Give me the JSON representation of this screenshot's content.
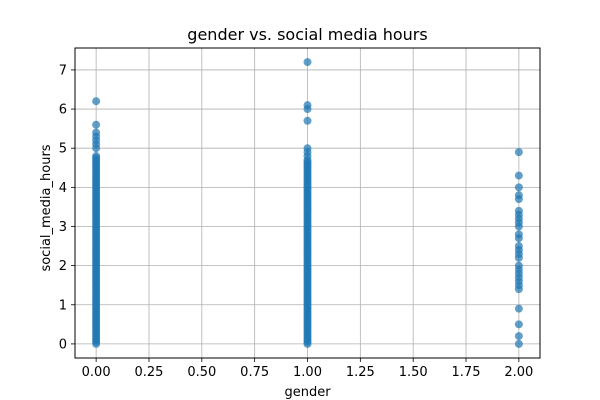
{
  "chart_data": {
    "type": "scatter",
    "title": "gender vs. social media hours",
    "xlabel": "gender",
    "ylabel": "social_media_hours",
    "xlim": [
      -0.1,
      2.1
    ],
    "ylim": [
      -0.36,
      7.56
    ],
    "xticks": [
      0.0,
      0.25,
      0.5,
      0.75,
      1.0,
      1.25,
      1.5,
      1.75,
      2.0
    ],
    "xtick_labels": [
      "0.00",
      "0.25",
      "0.50",
      "0.75",
      "1.00",
      "1.25",
      "1.50",
      "1.75",
      "2.00"
    ],
    "yticks": [
      0,
      1,
      2,
      3,
      4,
      5,
      6,
      7
    ],
    "ytick_labels": [
      "0",
      "1",
      "2",
      "3",
      "4",
      "5",
      "6",
      "7"
    ],
    "grid": true,
    "marker_color": "#1f77b4",
    "marker_alpha": 0.7,
    "series": [
      {
        "x": 0,
        "y": [
          0.0,
          0.05,
          0.1,
          0.15,
          0.2,
          0.25,
          0.3,
          0.35,
          0.4,
          0.45,
          0.5,
          0.55,
          0.6,
          0.65,
          0.7,
          0.75,
          0.8,
          0.85,
          0.9,
          0.95,
          1.0,
          1.05,
          1.1,
          1.15,
          1.2,
          1.25,
          1.3,
          1.35,
          1.4,
          1.45,
          1.5,
          1.55,
          1.6,
          1.65,
          1.7,
          1.75,
          1.8,
          1.85,
          1.9,
          1.95,
          2.0,
          2.05,
          2.1,
          2.15,
          2.2,
          2.25,
          2.3,
          2.35,
          2.4,
          2.45,
          2.5,
          2.55,
          2.6,
          2.65,
          2.7,
          2.75,
          2.8,
          2.85,
          2.9,
          2.95,
          3.0,
          3.05,
          3.1,
          3.15,
          3.2,
          3.25,
          3.3,
          3.35,
          3.4,
          3.45,
          3.5,
          3.55,
          3.6,
          3.65,
          3.7,
          3.75,
          3.8,
          3.85,
          3.9,
          3.95,
          4.0,
          4.05,
          4.1,
          4.15,
          4.2,
          4.25,
          4.3,
          4.35,
          4.4,
          4.45,
          4.5,
          4.55,
          4.6,
          4.65,
          4.7,
          4.75,
          4.8,
          5.0,
          5.1,
          5.2,
          5.3,
          5.4,
          5.6,
          6.2
        ]
      },
      {
        "x": 1,
        "y": [
          0.0,
          0.05,
          0.1,
          0.15,
          0.2,
          0.25,
          0.3,
          0.35,
          0.4,
          0.45,
          0.5,
          0.55,
          0.6,
          0.65,
          0.7,
          0.75,
          0.8,
          0.85,
          0.9,
          0.95,
          1.0,
          1.05,
          1.1,
          1.15,
          1.2,
          1.25,
          1.3,
          1.35,
          1.4,
          1.45,
          1.5,
          1.55,
          1.6,
          1.65,
          1.7,
          1.75,
          1.8,
          1.85,
          1.9,
          1.95,
          2.0,
          2.05,
          2.1,
          2.15,
          2.2,
          2.25,
          2.3,
          2.35,
          2.4,
          2.45,
          2.5,
          2.55,
          2.6,
          2.65,
          2.7,
          2.75,
          2.8,
          2.85,
          2.9,
          2.95,
          3.0,
          3.05,
          3.1,
          3.15,
          3.2,
          3.25,
          3.3,
          3.35,
          3.4,
          3.45,
          3.5,
          3.55,
          3.6,
          3.65,
          3.7,
          3.75,
          3.8,
          3.85,
          3.9,
          3.95,
          4.0,
          4.05,
          4.1,
          4.15,
          4.2,
          4.25,
          4.3,
          4.35,
          4.4,
          4.45,
          4.5,
          4.55,
          4.6,
          4.65,
          4.7,
          4.8,
          4.9,
          5.0,
          5.7,
          6.0,
          6.1,
          7.2
        ]
      },
      {
        "x": 2,
        "y": [
          0.0,
          0.2,
          0.5,
          0.9,
          1.4,
          1.5,
          1.6,
          1.7,
          1.8,
          1.9,
          2.0,
          2.2,
          2.3,
          2.4,
          2.5,
          2.7,
          2.8,
          3.0,
          3.1,
          3.2,
          3.3,
          3.4,
          3.7,
          3.8,
          4.0,
          4.3,
          4.9
        ]
      }
    ]
  }
}
